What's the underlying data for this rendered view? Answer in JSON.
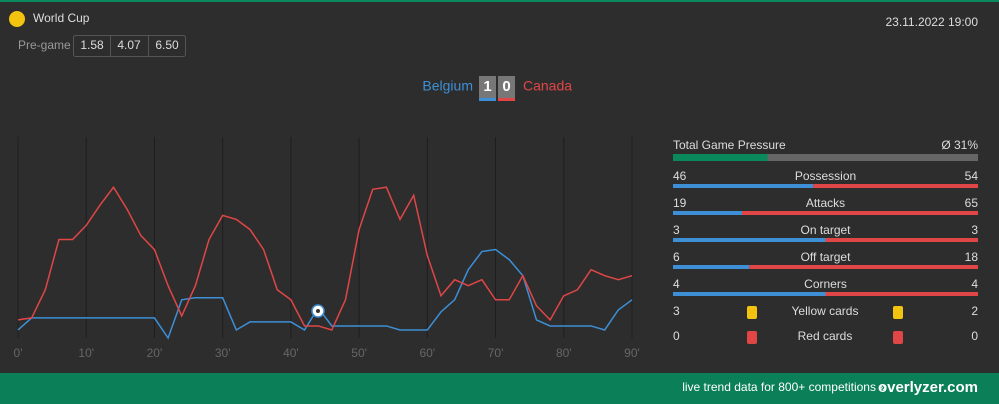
{
  "header": {
    "competition": "World Cup",
    "pregame_label": "Pre-game",
    "odds": [
      "1.58",
      "4.07",
      "6.50"
    ],
    "datetime": "23.11.2022 19:00"
  },
  "score": {
    "home": "Belgium",
    "home_goals": 1,
    "away_goals": 0,
    "away": "Canada"
  },
  "chart_data": {
    "type": "line",
    "x": [
      0,
      2,
      4,
      6,
      8,
      10,
      12,
      14,
      16,
      18,
      20,
      22,
      24,
      26,
      28,
      30,
      32,
      34,
      36,
      38,
      40,
      42,
      44,
      46,
      48,
      50,
      52,
      54,
      56,
      58,
      60,
      62,
      64,
      66,
      68,
      70,
      72,
      74,
      76,
      78,
      80,
      82,
      84,
      86,
      88,
      90
    ],
    "series": [
      {
        "name": "Belgium",
        "color": "#3d8fd6",
        "values": [
          4,
          10,
          10,
          10,
          10,
          10,
          10,
          10,
          10,
          10,
          10,
          0,
          19,
          20,
          20,
          20,
          4,
          8,
          8,
          8,
          8,
          4,
          15,
          6,
          6,
          6,
          6,
          6,
          4,
          4,
          4,
          13,
          19,
          34,
          43,
          44,
          39,
          31,
          9,
          6,
          6,
          6,
          6,
          4,
          14,
          19
        ]
      },
      {
        "name": "Canada",
        "color": "#e04646",
        "values": [
          9,
          10,
          24,
          49,
          49,
          56,
          66,
          75,
          64,
          51,
          44,
          26,
          11,
          26,
          49,
          61,
          59,
          54,
          44,
          24,
          19,
          6,
          6,
          4,
          19,
          54,
          74,
          75,
          59,
          71,
          41,
          21,
          29,
          26,
          29,
          19,
          19,
          31,
          16,
          9,
          21,
          24,
          34,
          31,
          29,
          31
        ]
      }
    ],
    "xlim": [
      0,
      90
    ],
    "xticks": [
      {
        "value": 0,
        "label": "0'"
      },
      {
        "value": 10,
        "label": "10'"
      },
      {
        "value": 20,
        "label": "20'"
      },
      {
        "value": 30,
        "label": "30'"
      },
      {
        "value": 40,
        "label": "40'"
      },
      {
        "value": 50,
        "label": "50'"
      },
      {
        "value": 60,
        "label": "60'"
      },
      {
        "value": 70,
        "label": "70'"
      },
      {
        "value": 80,
        "label": "80'"
      },
      {
        "value": 90,
        "label": "90'"
      }
    ],
    "ylim": [
      0,
      100
    ],
    "grid": true
  },
  "pressure": {
    "label": "Total Game Pressure",
    "value_label": "Ø 31%",
    "value": 31,
    "color": "#0a8a5c"
  },
  "stats": [
    {
      "name": "Possession",
      "home": 46,
      "away": 54
    },
    {
      "name": "Attacks",
      "home": 19,
      "away": 65
    },
    {
      "name": "On target",
      "home": 3,
      "away": 3
    },
    {
      "name": "Off target",
      "home": 6,
      "away": 18
    },
    {
      "name": "Corners",
      "home": 4,
      "away": 4
    }
  ],
  "cards": [
    {
      "name": "Yellow cards",
      "home": 3,
      "away": 2,
      "color": "#f2c40f"
    },
    {
      "name": "Red cards",
      "home": 0,
      "away": 0,
      "color": "#e04646"
    }
  ],
  "footer": {
    "text": "live trend data for 800+ competitions »",
    "brand": "overlyzer.com"
  }
}
